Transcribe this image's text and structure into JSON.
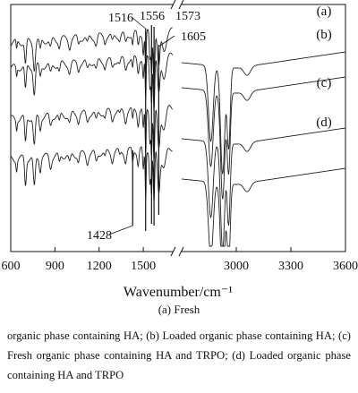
{
  "chart_data": {
    "type": "line",
    "xlabel": "Wavenumber/cm⁻¹",
    "x_axis": {
      "segments": [
        [
          600,
          1700
        ],
        [
          2700,
          3600
        ]
      ],
      "ticks_left": [
        600,
        900,
        1200,
        1500
      ],
      "ticks_right": [
        3000,
        3300,
        3600
      ],
      "tick_labels": [
        "600",
        "900",
        "1200",
        "1500",
        "3000",
        "3300",
        "3600"
      ]
    },
    "y_axis": {
      "label": "",
      "ticks": false
    },
    "grid": false,
    "series": [
      {
        "name": "(a)"
      },
      {
        "name": "(b)"
      },
      {
        "name": "(c)"
      },
      {
        "name": "(d)"
      }
    ],
    "peak_markers": [
      {
        "label": "1516",
        "wavenumber": 1516
      },
      {
        "label": "1556",
        "wavenumber": 1556
      },
      {
        "label": "1573",
        "wavenumber": 1573
      },
      {
        "label": "1605",
        "wavenumber": 1605
      },
      {
        "label": "1428",
        "wavenumber": 1428
      }
    ]
  },
  "subcaption": "(a)  Fresh",
  "caption": "organic phase containing HA; (b) Loaded organic phase containing HA; (c) Fresh organic phase containing HA and TRPO; (d) Loaded organic phase containing HA and TRPO"
}
